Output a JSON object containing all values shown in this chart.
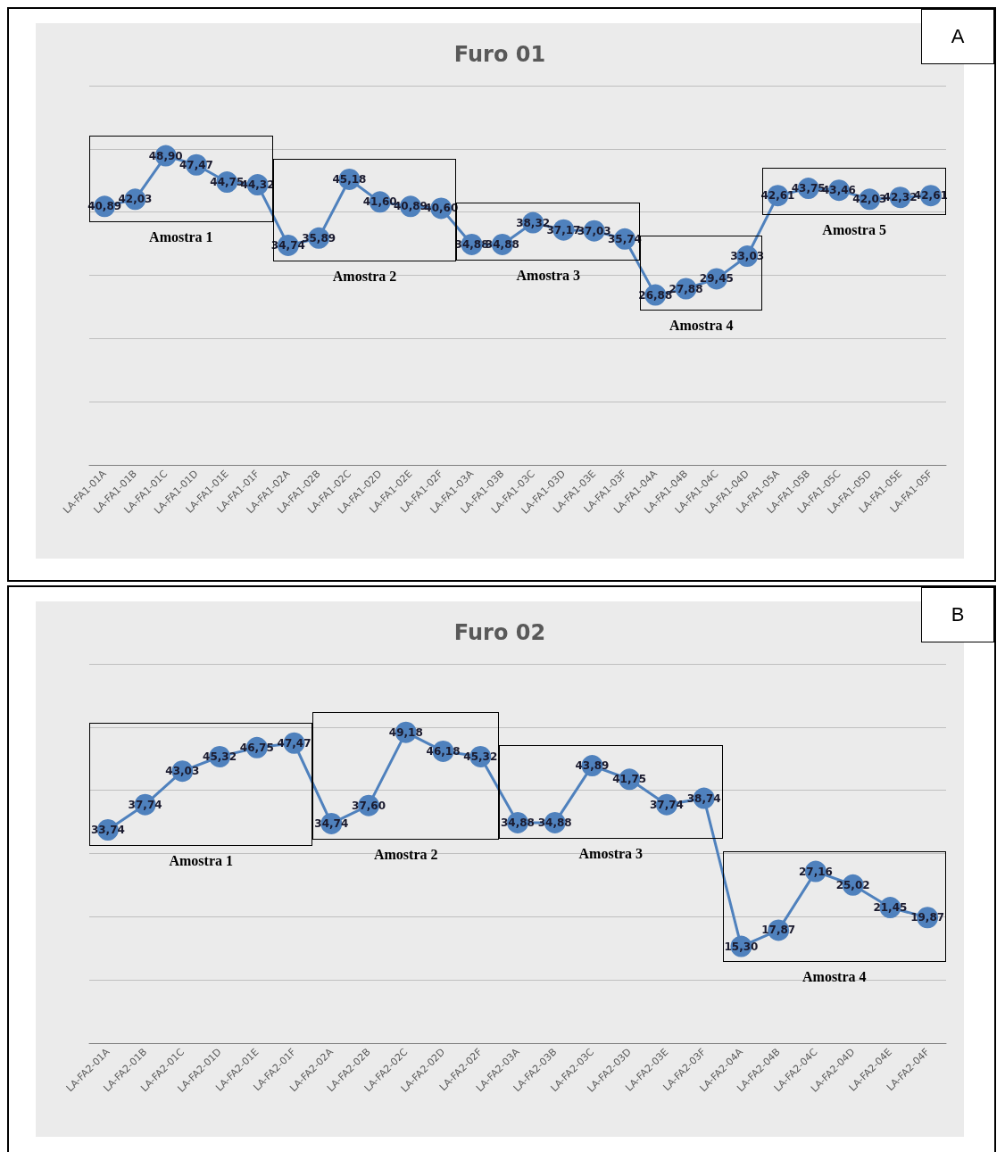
{
  "chart_data": [
    {
      "type": "line",
      "title": "Furo 01",
      "annotations": [
        "A",
        "Amostra 1",
        "Amostra 2",
        "Amostra 3",
        "Amostra 4",
        "Amostra 5"
      ],
      "categories": [
        "LA-FA1-01A",
        "LA-FA1-01B",
        "LA-FA1-01C",
        "LA-FA1-01D",
        "LA-FA1-01E",
        "LA-FA1-01F",
        "LA-FA1-02A",
        "LA-FA1-02B",
        "LA-FA1-02C",
        "LA-FA1-02D",
        "LA-FA1-02E",
        "LA-FA1-02F",
        "LA-FA1-03A",
        "LA-FA1-03B",
        "LA-FA1-03C",
        "LA-FA1-03D",
        "LA-FA1-03E",
        "LA-FA1-03F",
        "LA-FA1-04A",
        "LA-FA1-04B",
        "LA-FA1-04C",
        "LA-FA1-04D",
        "LA-FA1-05A",
        "LA-FA1-05B",
        "LA-FA1-05C",
        "LA-FA1-05D",
        "LA-FA1-05E",
        "LA-FA1-05F"
      ],
      "series": [
        {
          "color": "#4f81bd",
          "values": [
            40.89,
            42.03,
            48.9,
            47.47,
            44.75,
            44.32,
            34.74,
            35.89,
            45.18,
            41.6,
            40.89,
            40.6,
            34.88,
            34.88,
            38.32,
            37.17,
            37.03,
            35.74,
            26.88,
            27.88,
            29.45,
            33.03,
            42.61,
            43.75,
            43.46,
            42.03,
            42.32,
            42.61
          ],
          "value_labels": [
            "40,89",
            "42,03",
            "48,90",
            "47,47",
            "44,75",
            "44,32",
            "34,74",
            "35,89",
            "45,18",
            "41,60",
            "40,89",
            "40,60",
            "34,88",
            "34,88",
            "38,32",
            "37,17",
            "37,03",
            "35,74",
            "26,88",
            "27,88",
            "29,45",
            "33,03",
            "42,61",
            "43,75",
            "43,46",
            "42,03",
            "42,32",
            "42,61"
          ]
        }
      ],
      "ylim": [
        0,
        60
      ],
      "yticks": [
        {
          "value": 0,
          "label": null
        },
        {
          "value": 10,
          "label": null
        },
        {
          "value": 20,
          "label": null
        },
        {
          "value": 30,
          "label": null
        },
        {
          "value": 40,
          "label": null
        },
        {
          "value": 50,
          "label": null
        },
        {
          "value": 60,
          "label": null
        }
      ],
      "tick_labels": "x",
      "grid": "y",
      "marker": "circle",
      "line_style": "solid"
    },
    {
      "type": "line",
      "title": "Furo 02",
      "annotations": [
        "B",
        "Amostra 1",
        "Amostra 2",
        "Amostra 3",
        "Amostra 4"
      ],
      "categories": [
        "LA-FA2-01A",
        "LA-FA2-01B",
        "LA-FA2-01C",
        "LA-FA2-01D",
        "LA-FA2-01E",
        "LA-FA2-01F",
        "LA-FA2-02A",
        "LA-FA2-02B",
        "LA-FA2-02C",
        "LA-FA2-02D",
        "LA-FA2-02F",
        "LA-FA2-03A",
        "LA-FA2-03B",
        "LA-FA2-03C",
        "LA-FA2-03D",
        "LA-FA2-03E",
        "LA-FA2-03F",
        "LA-FA2-04A",
        "LA-FA2-04B",
        "LA-FA2-04C",
        "LA-FA2-04D",
        "LA-FA2-04E",
        "LA-FA2-04F"
      ],
      "series": [
        {
          "color": "#4f81bd",
          "values": [
            33.74,
            37.74,
            43.03,
            45.32,
            46.75,
            47.47,
            34.74,
            37.6,
            49.18,
            46.18,
            45.32,
            34.88,
            34.88,
            43.89,
            41.75,
            37.74,
            38.74,
            15.3,
            17.87,
            27.16,
            25.02,
            21.45,
            19.87
          ],
          "value_labels": [
            "33,74",
            "37,74",
            "43,03",
            "45,32",
            "46,75",
            "47,47",
            "34,74",
            "37,60",
            "49,18",
            "46,18",
            "45,32",
            "34,88",
            "34,88",
            "43,89",
            "41,75",
            "37,74",
            "38,74",
            "15,30",
            "17,87",
            "27,16",
            "25,02",
            "21,45",
            "19,87"
          ]
        }
      ],
      "ylim": [
        0,
        60
      ],
      "yticks": [
        {
          "value": 0,
          "label": null
        },
        {
          "value": 10,
          "label": null
        },
        {
          "value": 20,
          "label": null
        },
        {
          "value": 30,
          "label": null
        },
        {
          "value": 40,
          "label": null
        },
        {
          "value": 50,
          "label": null
        },
        {
          "value": 60,
          "label": null
        }
      ],
      "tick_labels": "x",
      "grid": "y",
      "marker": "circle",
      "line_style": "solid"
    }
  ]
}
